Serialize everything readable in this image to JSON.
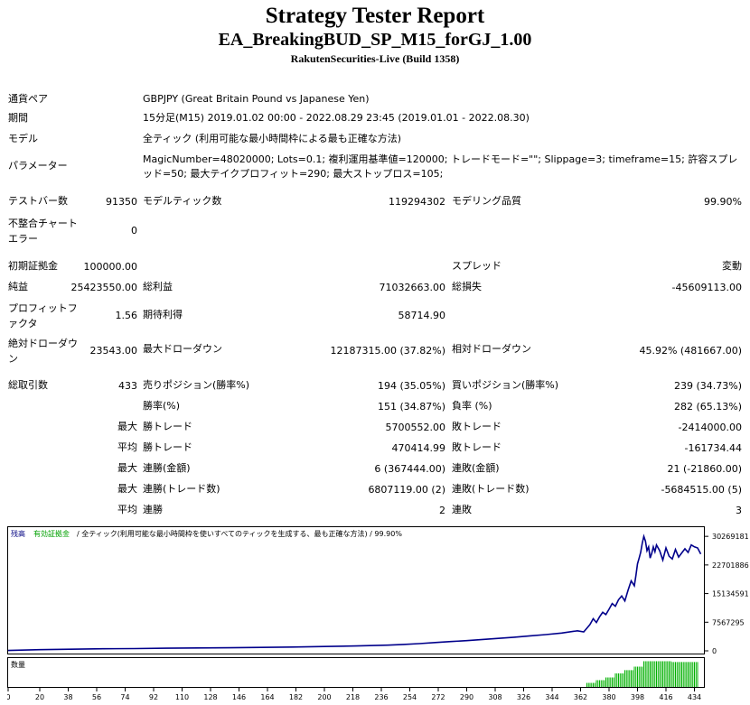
{
  "header": {
    "title": "Strategy Tester Report",
    "ea_name": "EA_BreakingBUD_SP_M15_forGJ_1.00",
    "server": "RakutenSecurities-Live (Build 1358)"
  },
  "info": {
    "symbol_label": "通貨ペア",
    "symbol_value": "GBPJPY (Great Britain Pound vs Japanese Yen)",
    "period_label": "期間",
    "period_value": "15分足(M15) 2019.01.02 00:00 - 2022.08.29 23:45 (2019.01.01 - 2022.08.30)",
    "model_label": "モデル",
    "model_value": "全ティック (利用可能な最小時間枠による最も正確な方法)",
    "params_label": "パラメーター",
    "params_value": "MagicNumber=48020000; Lots=0.1; 複利運用基準値=120000; トレードモード=\"\"; Slippage=3; timeframe=15; 許容スプレッド=50; 最大テイクプロフィット=290; 最大ストップロス=105;"
  },
  "stats": {
    "bars_label": "テストバー数",
    "bars_value": "91350",
    "ticks_label": "モデルティック数",
    "ticks_value": "119294302",
    "quality_label": "モデリング品質",
    "quality_value": "99.90%",
    "mismatch_label": "不整合チャートエラー",
    "mismatch_value": "0",
    "deposit_label": "初期証拠金",
    "deposit_value": "100000.00",
    "spread_label": "スプレッド",
    "spread_value": "変動",
    "net_label": "純益",
    "net_value": "25423550.00",
    "gross_profit_label": "総利益",
    "gross_profit_value": "71032663.00",
    "gross_loss_label": "総損失",
    "gross_loss_value": "-45609113.00",
    "pf_label": "プロフィットファクタ",
    "pf_value": "1.56",
    "expected_label": "期待利得",
    "expected_value": "58714.90",
    "abs_dd_label": "絶対ドローダウン",
    "abs_dd_value": "23543.00",
    "max_dd_label": "最大ドローダウン",
    "max_dd_value": "12187315.00 (37.82%)",
    "rel_dd_label": "相対ドローダウン",
    "rel_dd_value": "45.92% (481667.00)",
    "trades_label": "総取引数",
    "trades_value": "433",
    "short_label": "売りポジション(勝率%)",
    "short_value": "194 (35.05%)",
    "long_label": "買いポジション(勝率%)",
    "long_value": "239 (34.73%)",
    "win_pct_label": "勝率(%)",
    "win_pct_value": "151 (34.87%)",
    "loss_pct_label": "負率 (%)",
    "loss_pct_value": "282 (65.13%)",
    "largest_prefix": "最大",
    "largest_win_label": "勝トレード",
    "largest_win_value": "5700552.00",
    "largest_loss_label": "敗トレード",
    "largest_loss_value": "-2414000.00",
    "average_prefix": "平均",
    "avg_win_label": "勝トレード",
    "avg_win_value": "470414.99",
    "avg_loss_label": "敗トレード",
    "avg_loss_value": "-161734.44",
    "max_prefix1": "最大",
    "max_cons_wins_label": "連勝(金額)",
    "max_cons_wins_value": "6 (367444.00)",
    "max_cons_losses_label": "連敗(金額)",
    "max_cons_losses_value": "21 (-21860.00)",
    "max_prefix2": "最大",
    "max_cons_profit_label": "連勝(トレード数)",
    "max_cons_profit_value": "6807119.00 (2)",
    "max_cons_loss_label": "連敗(トレード数)",
    "max_cons_loss_value": "-5684515.00 (5)",
    "avg_prefix2": "平均",
    "avg_cons_wins_label": "連勝",
    "avg_cons_wins_value": "2",
    "avg_cons_losses_label": "連敗",
    "avg_cons_losses_value": "3"
  },
  "chart_data": {
    "type": "line",
    "legend_balance": "残高",
    "legend_equity": "有効証拠金",
    "legend_desc": " / 全ティック(利用可能な最小時間枠を使いすべてのティックを生成する、最も正確な方法) / 99.90%",
    "volume_label": "数量",
    "ylim": [
      0,
      31500000
    ],
    "yticks": [
      "30269181",
      "22701886",
      "15134591",
      "7567295",
      "0"
    ],
    "ytick_values": [
      30269181,
      22701886,
      15134591,
      7567295,
      0
    ],
    "xticks": [
      "0",
      "20",
      "38",
      "56",
      "74",
      "92",
      "110",
      "128",
      "146",
      "164",
      "182",
      "200",
      "218",
      "236",
      "254",
      "272",
      "290",
      "308",
      "326",
      "344",
      "362",
      "380",
      "398",
      "416",
      "434"
    ],
    "xlim": [
      0,
      440
    ],
    "balance_color": "#00008b",
    "volume_color": "#00b000",
    "x": [
      0,
      20,
      40,
      60,
      80,
      100,
      120,
      140,
      160,
      180,
      200,
      220,
      240,
      250,
      260,
      270,
      280,
      290,
      300,
      310,
      320,
      330,
      340,
      350,
      360,
      364,
      366,
      368,
      370,
      372,
      374,
      376,
      378,
      380,
      382,
      384,
      386,
      388,
      390,
      392,
      394,
      396,
      397,
      398,
      399,
      400,
      401,
      402,
      403,
      404,
      405,
      406,
      407,
      408,
      409,
      410,
      412,
      414,
      416,
      418,
      420,
      422,
      424,
      426,
      428,
      430,
      432,
      434,
      436,
      438
    ],
    "balance": [
      100000,
      300000,
      420000,
      550000,
      600000,
      690000,
      760000,
      820000,
      900000,
      1000000,
      1150000,
      1300000,
      1500000,
      1700000,
      1900000,
      2200000,
      2450000,
      2700000,
      3000000,
      3300000,
      3600000,
      3950000,
      4300000,
      4700000,
      5300000,
      5000000,
      6000000,
      7000000,
      8500000,
      7500000,
      9000000,
      10200000,
      9600000,
      11000000,
      12500000,
      11800000,
      13500000,
      14500000,
      13200000,
      16000000,
      18500000,
      17200000,
      20000000,
      23000000,
      24500000,
      26000000,
      28500000,
      30269181,
      29000000,
      26500000,
      27500000,
      24500000,
      25800000,
      27500000,
      26200000,
      28000000,
      26500000,
      24000000,
      27200000,
      25000000,
      24300000,
      26800000,
      24800000,
      25900000,
      27000000,
      26000000,
      28000000,
      27500000,
      27200000,
      25600000
    ],
    "volume_start_x": 366,
    "volume_steps": [
      [
        366,
        0.15
      ],
      [
        372,
        0.25
      ],
      [
        378,
        0.35
      ],
      [
        384,
        0.5
      ],
      [
        390,
        0.62
      ],
      [
        396,
        0.75
      ],
      [
        402,
        0.95
      ],
      [
        410,
        0.95
      ],
      [
        420,
        0.92
      ],
      [
        436,
        0.92
      ]
    ]
  }
}
